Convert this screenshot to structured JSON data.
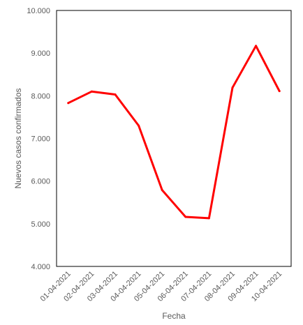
{
  "chart_data": {
    "type": "line",
    "title": "",
    "xlabel": "Fecha",
    "ylabel": "Nuevos casos confirmados",
    "categories": [
      "01-04-2021",
      "02-04-2021",
      "03-04-2021",
      "04-04-2021",
      "05-04-2021",
      "06-04-2021",
      "07-04-2021",
      "08-04-2021",
      "09-04-2021",
      "10-04-2021"
    ],
    "series": [
      {
        "values": [
          7830,
          8100,
          8030,
          7300,
          5790,
          5160,
          5130,
          8190,
          9170,
          8110
        ]
      }
    ],
    "ylim": [
      4000,
      10000
    ],
    "yticks": [
      4000,
      5000,
      6000,
      7000,
      8000,
      9000,
      10000
    ],
    "ytick_labels": [
      "4.000",
      "5.000",
      "6.000",
      "7.000",
      "8.000",
      "9.000",
      "10.000"
    ],
    "grid": false,
    "legend": "none",
    "line_color": "#ff0000"
  }
}
